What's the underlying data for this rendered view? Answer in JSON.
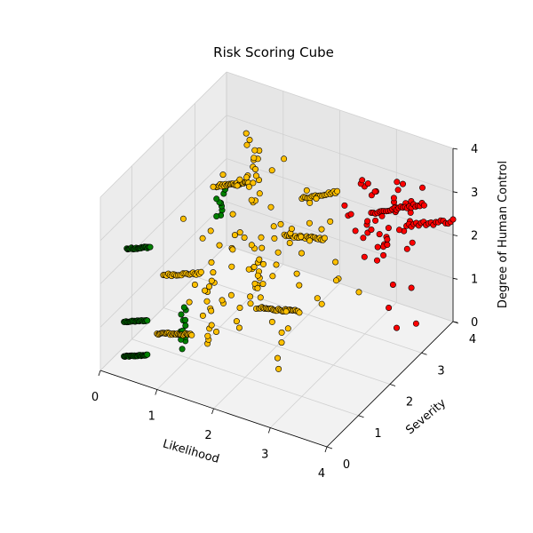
{
  "chart_data": {
    "type": "scatter",
    "projection": "3d",
    "title": "Risk Scoring Cube",
    "xlabel": "Likelihood",
    "ylabel": "Severity",
    "zlabel": "Degree of Human Control",
    "xlim": [
      0,
      4
    ],
    "ylim": [
      0,
      4
    ],
    "zlim": [
      0,
      4
    ],
    "xticks": [
      "0",
      "1",
      "2",
      "3",
      "4"
    ],
    "yticks": [
      "0",
      "1",
      "2",
      "3",
      "4"
    ],
    "zticks": [
      "0",
      "1",
      "2",
      "3",
      "4"
    ],
    "grid": true,
    "colors": {
      "green": "#008000",
      "orange": "#ffc000",
      "red": "#ff0000",
      "edge": "#000000",
      "pane_left": "#ececec",
      "pane_back": "#e6e6e6",
      "pane_floor": "#f2f2f2",
      "grid": "#d0d0d0"
    },
    "clusters": [
      {
        "color": "green",
        "x": [
          0.25,
          0.55
        ],
        "y": [
          0.3,
          0.5
        ],
        "z": [
          0.2,
          0.4
        ],
        "count": 28,
        "kind": "line"
      },
      {
        "color": "green",
        "x": [
          0.25,
          0.55
        ],
        "y": [
          0.3,
          0.5
        ],
        "z": [
          1.0,
          1.2
        ],
        "count": 24,
        "kind": "line"
      },
      {
        "color": "green",
        "x": [
          0.3,
          0.6
        ],
        "y": [
          0.3,
          0.5
        ],
        "z": [
          2.7,
          3.0
        ],
        "count": 26,
        "kind": "line"
      },
      {
        "color": "green",
        "x": [
          0.9,
          1.0
        ],
        "y": [
          0.8,
          1.0
        ],
        "z": [
          0.3,
          1.2
        ],
        "count": 12,
        "kind": "column"
      },
      {
        "color": "green",
        "x": [
          0.9,
          1.0
        ],
        "y": [
          2.0,
          2.2
        ],
        "z": [
          2.4,
          3.1
        ],
        "count": 10,
        "kind": "column"
      },
      {
        "color": "orange",
        "x": [
          0.5,
          1.0
        ],
        "y": [
          0.9,
          1.1
        ],
        "z": [
          0.4,
          0.8
        ],
        "count": 30,
        "kind": "line"
      },
      {
        "color": "orange",
        "x": [
          0.5,
          1.0
        ],
        "y": [
          1.1,
          1.4
        ],
        "z": [
          1.6,
          2.0
        ],
        "count": 24,
        "kind": "line"
      },
      {
        "color": "orange",
        "x": [
          0.6,
          1.0
        ],
        "y": [
          2.6,
          2.9
        ],
        "z": [
          2.6,
          3.1
        ],
        "count": 26,
        "kind": "line"
      },
      {
        "color": "orange",
        "x": [
          1.2,
          1.4
        ],
        "y": [
          1.0,
          1.2
        ],
        "z": [
          0.4,
          2.0
        ],
        "count": 14,
        "kind": "column"
      },
      {
        "color": "orange",
        "x": [
          1.1,
          1.3
        ],
        "y": [
          2.6,
          2.8
        ],
        "z": [
          2.4,
          3.9
        ],
        "count": 18,
        "kind": "column"
      },
      {
        "color": "orange",
        "x": [
          1.6,
          1.8
        ],
        "y": [
          1.8,
          2.0
        ],
        "z": [
          0.8,
          2.4
        ],
        "count": 16,
        "kind": "column"
      },
      {
        "color": "orange",
        "x": [
          1.8,
          2.4
        ],
        "y": [
          1.8,
          2.0
        ],
        "z": [
          0.9,
          1.3
        ],
        "count": 30,
        "kind": "line"
      },
      {
        "color": "orange",
        "x": [
          1.8,
          2.4
        ],
        "y": [
          2.6,
          2.8
        ],
        "z": [
          2.0,
          2.4
        ],
        "count": 26,
        "kind": "line"
      },
      {
        "color": "orange",
        "x": [
          2.0,
          2.4
        ],
        "y": [
          2.8,
          3.2
        ],
        "z": [
          2.8,
          3.2
        ],
        "count": 22,
        "kind": "line"
      },
      {
        "color": "orange",
        "x": [
          0.8,
          2.8
        ],
        "y": [
          0.8,
          3.4
        ],
        "z": [
          0.2,
          3.6
        ],
        "count": 70,
        "kind": "scatter"
      },
      {
        "color": "red",
        "x": [
          2.6,
          3.6
        ],
        "y": [
          2.8,
          3.8
        ],
        "z": [
          1.6,
          3.2
        ],
        "count": 45,
        "kind": "scatter"
      },
      {
        "color": "red",
        "x": [
          3.0,
          3.6
        ],
        "y": [
          3.2,
          3.8
        ],
        "z": [
          2.6,
          3.1
        ],
        "count": 26,
        "kind": "line"
      },
      {
        "color": "red",
        "x": [
          3.4,
          4.0
        ],
        "y": [
          3.6,
          4.0
        ],
        "z": [
          2.2,
          2.9
        ],
        "count": 20,
        "kind": "line"
      },
      {
        "color": "red",
        "x": [
          3.2,
          3.8
        ],
        "y": [
          3.0,
          3.6
        ],
        "z": [
          0.3,
          1.3
        ],
        "count": 5,
        "kind": "scatter"
      }
    ]
  }
}
